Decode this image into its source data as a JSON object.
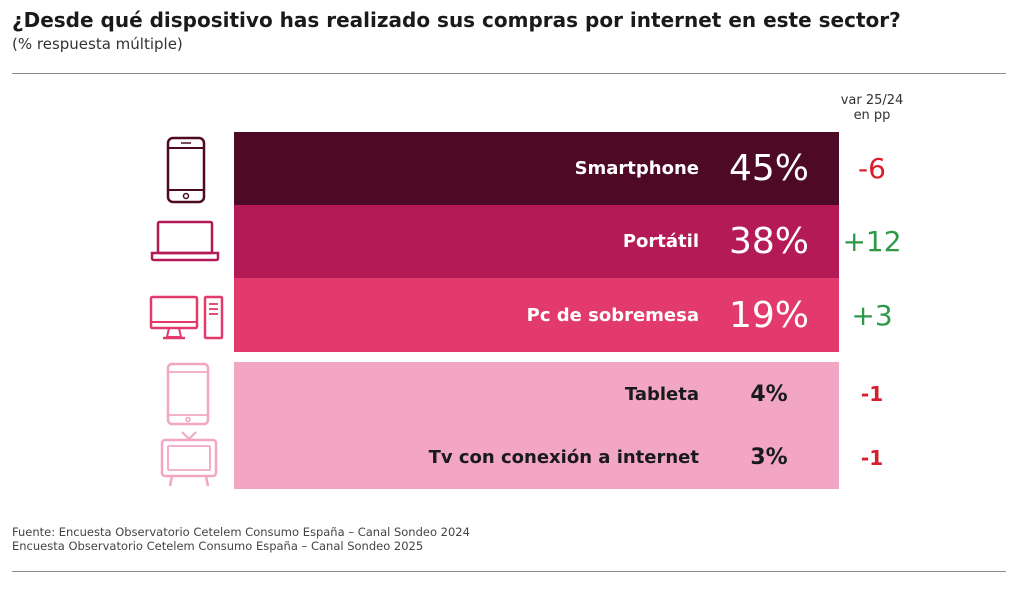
{
  "title": "¿Desde qué dispositivo has realizado sus compras por internet en este sector?",
  "subtitle": "(% respuesta múltiple)",
  "var_header": [
    "var 25/24",
    "en pp"
  ],
  "colors": {
    "smartphone": "#4e0a25",
    "portatil": "#b41a55",
    "pc": "#e23a6c",
    "light": "#f2a6c4",
    "negative": "#d81e2c",
    "positive": "#2e9a47"
  },
  "rows": [
    {
      "label": "Smartphone",
      "value": "45%",
      "var": "-6",
      "icon": "smartphone-icon"
    },
    {
      "label": "Portátil",
      "value": "38%",
      "var": "+12",
      "icon": "laptop-icon"
    },
    {
      "label": "Pc de sobremesa",
      "value": "19%",
      "var": "+3",
      "icon": "desktop-pc-icon"
    },
    {
      "label": "Tableta",
      "value": "4%",
      "var": "-1",
      "icon": "tablet-icon"
    },
    {
      "label": "Tv con conexión a internet",
      "value": "3%",
      "var": "-1",
      "icon": "tv-icon"
    }
  ],
  "chart_data": {
    "type": "bar",
    "title": "¿Desde qué dispositivo has realizado sus compras por internet en este sector?",
    "subtitle": "(% respuesta múltiple)",
    "categories": [
      "Smartphone",
      "Portátil",
      "Pc de sobremesa",
      "Tableta",
      "Tv con conexión a internet"
    ],
    "series": [
      {
        "values": [
          45,
          38,
          19,
          4,
          3
        ]
      },
      {
        "name": "var 25/24 en pp",
        "values": [
          -6,
          12,
          3,
          -1,
          -1
        ]
      }
    ]
  },
  "footer": [
    "Fuente: Encuesta Observatorio Cetelem Consumo España – Canal Sondeo 2024",
    "Encuesta Observatorio Cetelem Consumo España – Canal Sondeo 2025"
  ]
}
